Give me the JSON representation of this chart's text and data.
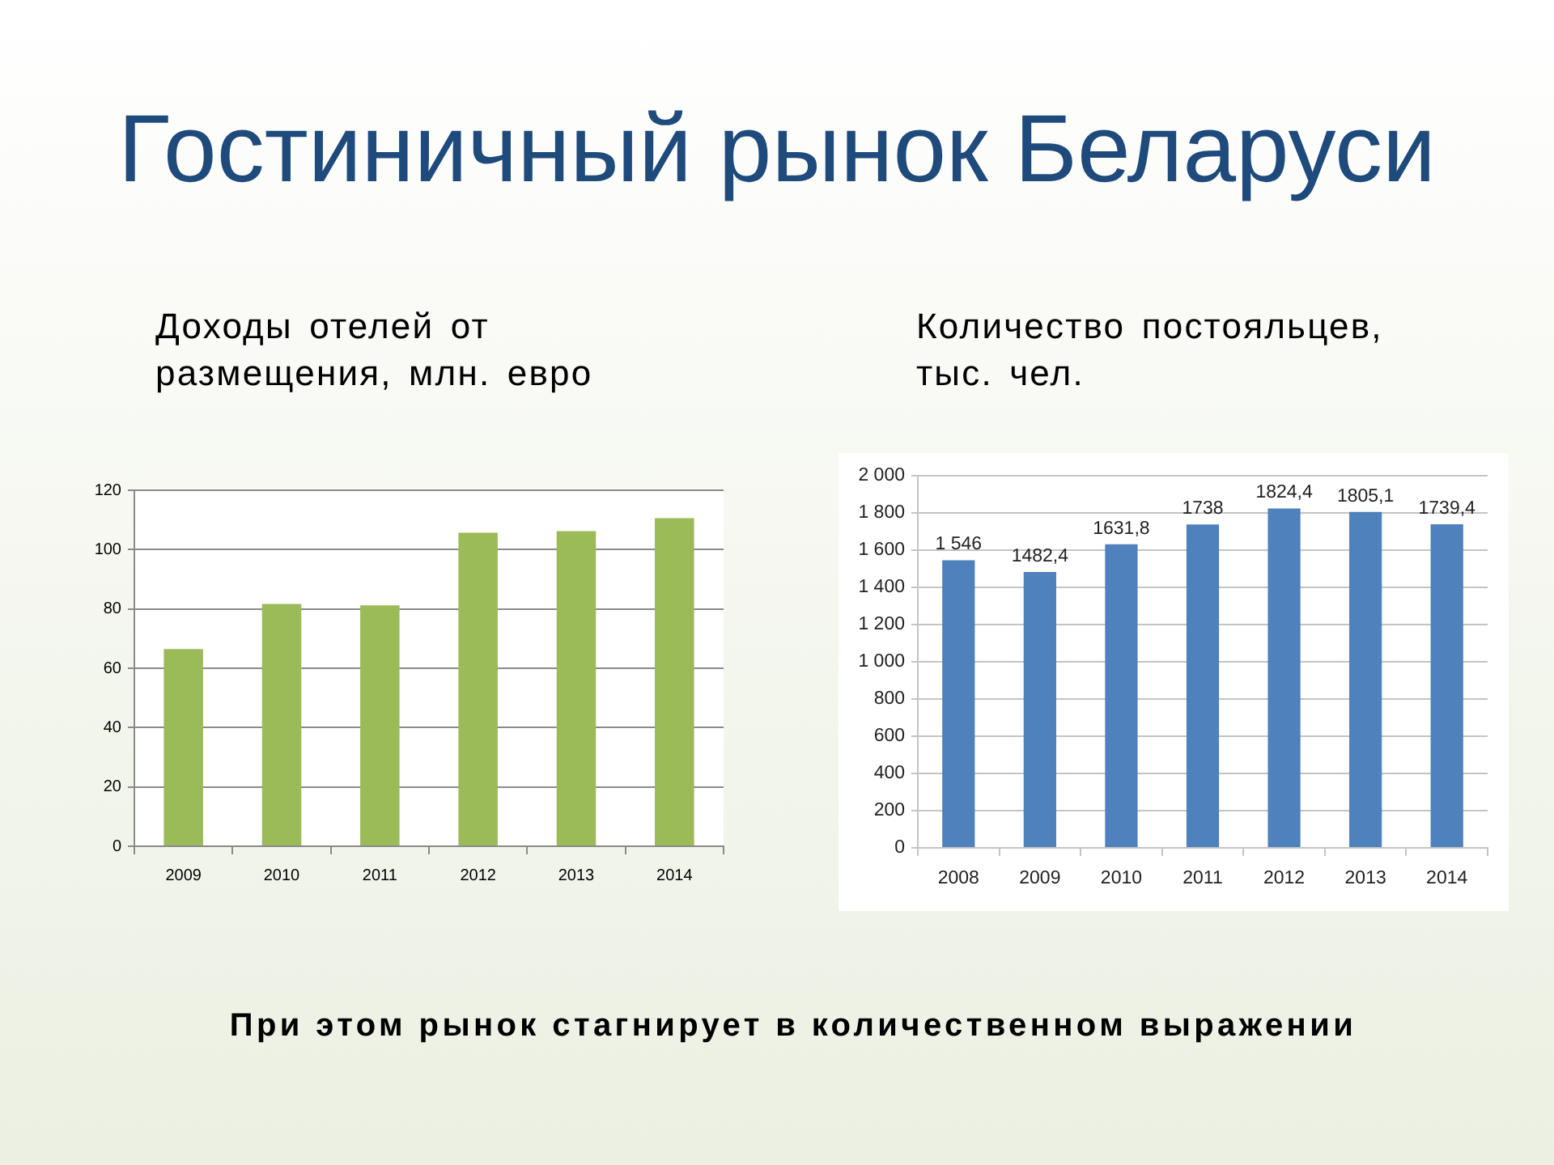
{
  "chart_data": [
    {
      "type": "other",
      "title": "Гостиничный рынок Беларуси"
    },
    {
      "type": "bar",
      "title": "Доходы отелей от размещения, млн. евро",
      "categories": [
        "2009",
        "2010",
        "2011",
        "2012",
        "2013",
        "2014"
      ],
      "values": [
        66.5,
        81.7,
        81.2,
        105.7,
        106.2,
        110.6
      ],
      "color": "#9bbb59",
      "ylim": [
        0,
        120
      ],
      "yticks": [
        0,
        20,
        40,
        60,
        80,
        100,
        120
      ],
      "grid": "y"
    },
    {
      "type": "bar",
      "title": "Количество постояльцев, тыс. чел.",
      "categories": [
        "2008",
        "2009",
        "2010",
        "2011",
        "2012",
        "2013",
        "2014"
      ],
      "values": [
        1546,
        1482.4,
        1631.8,
        1738,
        1824.4,
        1805.1,
        1739.4
      ],
      "value_labels": [
        "1 546",
        "1482,4",
        "1631,8",
        "1738",
        "1824,4",
        "1805,1",
        "1739,4"
      ],
      "color": "#4f81bd",
      "ylim": [
        0,
        2000
      ],
      "yticks": [
        0,
        200,
        400,
        600,
        800,
        {
          "value": 1000,
          "label": "1 000"
        },
        {
          "value": 1200,
          "label": "1 200"
        },
        {
          "value": 1400,
          "label": "1 400"
        },
        {
          "value": 1600,
          "label": "1 600"
        },
        {
          "value": 1800,
          "label": "1 800"
        },
        {
          "value": 2000,
          "label": "2 000"
        }
      ],
      "grid": "y"
    },
    {
      "type": "other",
      "annotations": [
        "При этом рынок стагнирует в количественном выражении"
      ]
    }
  ]
}
